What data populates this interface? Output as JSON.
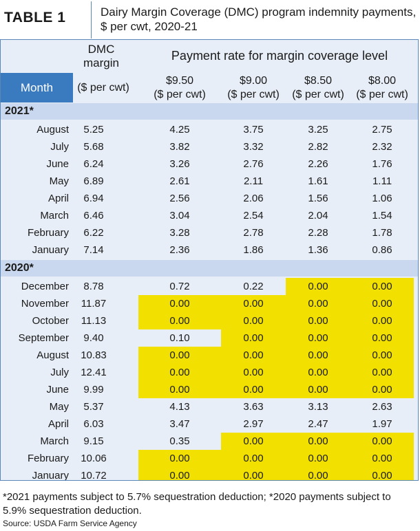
{
  "title": {
    "label": "TABLE 1",
    "text": "Dairy Margin Coverage (DMC) program indemnity payments, $ per cwt, 2020-21"
  },
  "header": {
    "dmc": "DMC margin",
    "payment": "Payment rate for margin coverage level",
    "month": "Month",
    "dmc_unit": "($ per cwt)",
    "levels": [
      {
        "rate": "$9.50",
        "unit": "($ per cwt)"
      },
      {
        "rate": "$9.00",
        "unit": "($ per cwt)"
      },
      {
        "rate": "$8.50",
        "unit": "($ per cwt)"
      },
      {
        "rate": "$8.00",
        "unit": "($ per cwt)"
      }
    ]
  },
  "sections": [
    {
      "label": "2021*",
      "rows": [
        {
          "month": "August",
          "dmc": "5.25",
          "rates": [
            "4.25",
            "3.75",
            "3.25",
            "2.75"
          ],
          "highlight": [
            false,
            false,
            false,
            false
          ]
        },
        {
          "month": "July",
          "dmc": "5.68",
          "rates": [
            "3.82",
            "3.32",
            "2.82",
            "2.32"
          ],
          "highlight": [
            false,
            false,
            false,
            false
          ]
        },
        {
          "month": "June",
          "dmc": "6.24",
          "rates": [
            "3.26",
            "2.76",
            "2.26",
            "1.76"
          ],
          "highlight": [
            false,
            false,
            false,
            false
          ]
        },
        {
          "month": "May",
          "dmc": "6.89",
          "rates": [
            "2.61",
            "2.11",
            "1.61",
            "1.11"
          ],
          "highlight": [
            false,
            false,
            false,
            false
          ]
        },
        {
          "month": "April",
          "dmc": "6.94",
          "rates": [
            "2.56",
            "2.06",
            "1.56",
            "1.06"
          ],
          "highlight": [
            false,
            false,
            false,
            false
          ]
        },
        {
          "month": "March",
          "dmc": "6.46",
          "rates": [
            "3.04",
            "2.54",
            "2.04",
            "1.54"
          ],
          "highlight": [
            false,
            false,
            false,
            false
          ]
        },
        {
          "month": "February",
          "dmc": "6.22",
          "rates": [
            "3.28",
            "2.78",
            "2.28",
            "1.78"
          ],
          "highlight": [
            false,
            false,
            false,
            false
          ]
        },
        {
          "month": "January",
          "dmc": "7.14",
          "rates": [
            "2.36",
            "1.86",
            "1.36",
            "0.86"
          ],
          "highlight": [
            false,
            false,
            false,
            false
          ]
        }
      ]
    },
    {
      "label": "2020*",
      "rows": [
        {
          "month": "December",
          "dmc": "8.78",
          "rates": [
            "0.72",
            "0.22",
            "0.00",
            "0.00"
          ],
          "highlight": [
            false,
            false,
            true,
            true
          ]
        },
        {
          "month": "November",
          "dmc": "11.87",
          "rates": [
            "0.00",
            "0.00",
            "0.00",
            "0.00"
          ],
          "highlight": [
            true,
            true,
            true,
            true
          ]
        },
        {
          "month": "October",
          "dmc": "11.13",
          "rates": [
            "0.00",
            "0.00",
            "0.00",
            "0.00"
          ],
          "highlight": [
            true,
            true,
            true,
            true
          ]
        },
        {
          "month": "September",
          "dmc": "9.40",
          "rates": [
            "0.10",
            "0.00",
            "0.00",
            "0.00"
          ],
          "highlight": [
            false,
            true,
            true,
            true
          ]
        },
        {
          "month": "August",
          "dmc": "10.83",
          "rates": [
            "0.00",
            "0.00",
            "0.00",
            "0.00"
          ],
          "highlight": [
            true,
            true,
            true,
            true
          ]
        },
        {
          "month": "July",
          "dmc": "12.41",
          "rates": [
            "0.00",
            "0.00",
            "0.00",
            "0.00"
          ],
          "highlight": [
            true,
            true,
            true,
            true
          ]
        },
        {
          "month": "June",
          "dmc": "9.99",
          "rates": [
            "0.00",
            "0.00",
            "0.00",
            "0.00"
          ],
          "highlight": [
            true,
            true,
            true,
            true
          ]
        },
        {
          "month": "May",
          "dmc": "5.37",
          "rates": [
            "4.13",
            "3.63",
            "3.13",
            "2.63"
          ],
          "highlight": [
            false,
            false,
            false,
            false
          ]
        },
        {
          "month": "April",
          "dmc": "6.03",
          "rates": [
            "3.47",
            "2.97",
            "2.47",
            "1.97"
          ],
          "highlight": [
            false,
            false,
            false,
            false
          ]
        },
        {
          "month": "March",
          "dmc": "9.15",
          "rates": [
            "0.35",
            "0.00",
            "0.00",
            "0.00"
          ],
          "highlight": [
            false,
            true,
            true,
            true
          ]
        },
        {
          "month": "February",
          "dmc": "10.06",
          "rates": [
            "0.00",
            "0.00",
            "0.00",
            "0.00"
          ],
          "highlight": [
            true,
            true,
            true,
            true
          ]
        },
        {
          "month": "January",
          "dmc": "10.72",
          "rates": [
            "0.00",
            "0.00",
            "0.00",
            "0.00"
          ],
          "highlight": [
            true,
            true,
            true,
            true
          ]
        }
      ]
    }
  ],
  "footnote": "*2021 payments subject to 5.7% sequestration deduction; *2020 payments subject to 5.9% sequestration deduction.",
  "source": "Source: USDA Farm Service Agency",
  "colors": {
    "header_blue": "#3a7bbf",
    "highlight_yellow": "#f2e100",
    "section_band": "#c9d8ee",
    "table_bg": "#e8eef7"
  }
}
